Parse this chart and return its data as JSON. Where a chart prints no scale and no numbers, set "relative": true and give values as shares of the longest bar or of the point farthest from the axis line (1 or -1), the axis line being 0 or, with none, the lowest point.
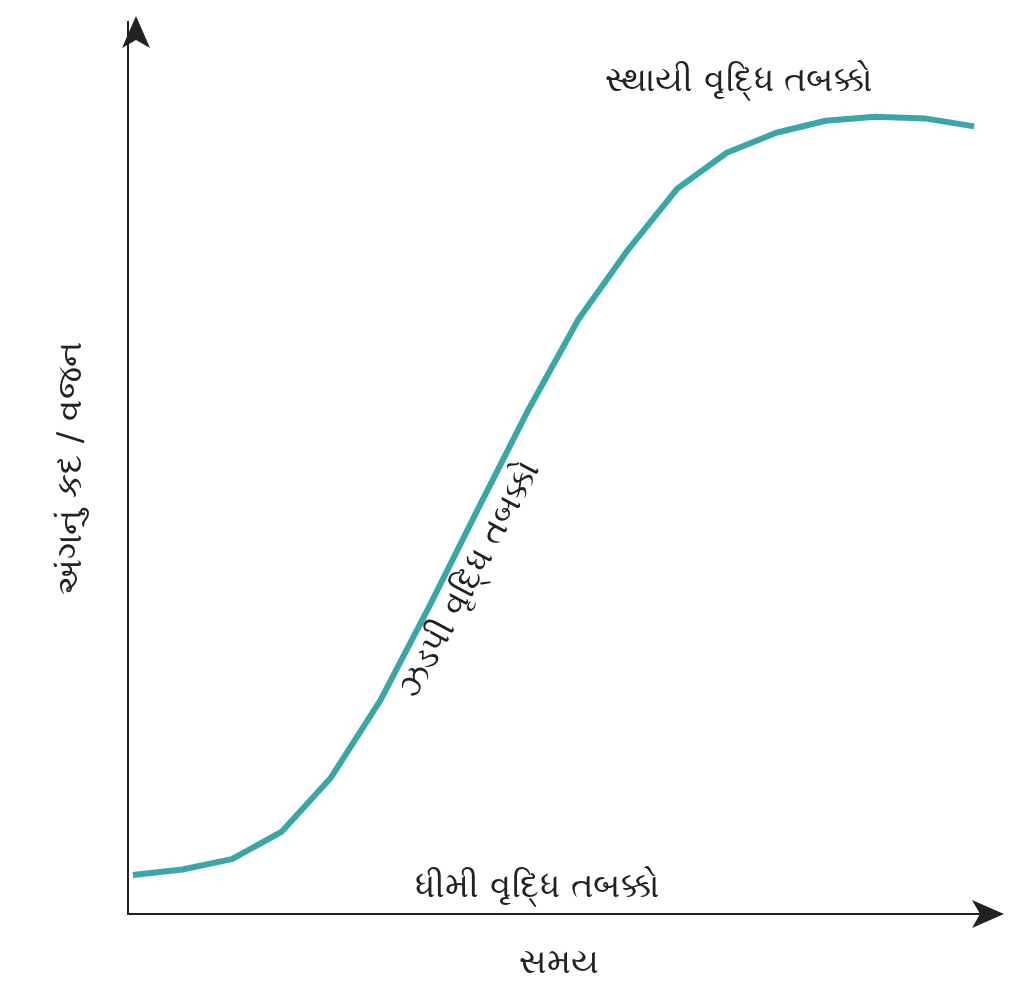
{
  "chart_data": {
    "type": "line",
    "relative": true,
    "xlabel": "સમય",
    "ylabel": "અંગનું કદ / વજન",
    "categories": [
      null,
      null,
      null,
      null,
      null,
      null,
      null,
      null,
      null,
      null,
      null,
      null,
      null,
      null,
      null,
      null,
      null,
      null
    ],
    "series": [
      {
        "color": "#3aa6a8",
        "values": [
          0.05,
          0.057,
          0.07,
          0.104,
          0.172,
          0.269,
          0.388,
          0.512,
          0.634,
          0.746,
          0.833,
          0.91,
          0.955,
          0.98,
          0.995,
          1,
          0.998,
          0.988
        ]
      }
    ],
    "annotations": [
      "સ્થાયી વૃદ્ધિ તબક્કો",
      "ઝડપી વૃદ્ધિ તબક્કો",
      "ધીમી વૃદ્ધિ તબક્કો"
    ],
    "grid": false,
    "marker": "none",
    "line_style": "solid"
  }
}
